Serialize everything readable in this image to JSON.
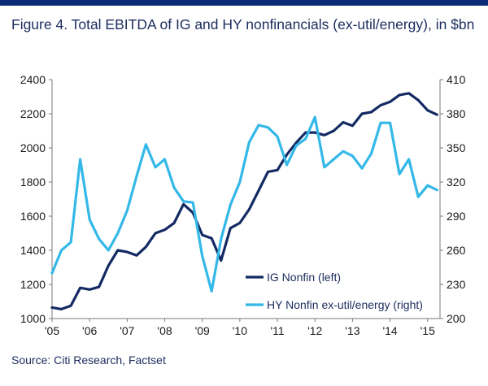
{
  "title": "Figure 4. Total EBITDA of IG and HY nonfinancials (ex-util/energy), in $bn",
  "source": "Source: Citi Research, Factset",
  "colors": {
    "ig": "#132a63",
    "hy": "#33b8e8",
    "topbar": "#0a2a78"
  },
  "chart_data": {
    "type": "line",
    "title": "Figure 4. Total EBITDA of IG and HY nonfinancials (ex-util/energy), in $bn",
    "xlabel": "",
    "ylabel": "",
    "x_tick_labels": [
      "'05",
      "'06",
      "'07",
      "'08",
      "'09",
      "'10",
      "'11",
      "'12",
      "'13",
      "'14",
      "'15"
    ],
    "y_left": {
      "lim": [
        1000,
        2400
      ],
      "ticks": [
        1000,
        1200,
        1400,
        1600,
        1800,
        2000,
        2200,
        2400
      ]
    },
    "y_right": {
      "lim": [
        200,
        410
      ],
      "ticks": [
        200,
        230,
        260,
        290,
        320,
        350,
        380,
        410
      ]
    },
    "grid": false,
    "legend_position": "bottom-right",
    "series": [
      {
        "name": "IG Nonfin (left)",
        "axis": "left",
        "color": "#132a63",
        "x": [
          2005.0,
          2005.25,
          2005.5,
          2005.75,
          2006.0,
          2006.25,
          2006.5,
          2006.75,
          2007.0,
          2007.25,
          2007.5,
          2007.75,
          2008.0,
          2008.25,
          2008.5,
          2008.75,
          2009.0,
          2009.25,
          2009.5,
          2009.75,
          2010.0,
          2010.25,
          2010.5,
          2010.75,
          2011.0,
          2011.25,
          2011.5,
          2011.75,
          2012.0,
          2012.25,
          2012.5,
          2012.75,
          2013.0,
          2013.25,
          2013.5,
          2013.75,
          2014.0,
          2014.25,
          2014.5,
          2014.75,
          2015.0,
          2015.25
        ],
        "values": [
          1065,
          1055,
          1075,
          1180,
          1170,
          1185,
          1310,
          1400,
          1390,
          1370,
          1420,
          1500,
          1520,
          1560,
          1670,
          1620,
          1490,
          1470,
          1340,
          1530,
          1560,
          1640,
          1750,
          1860,
          1870,
          1960,
          2030,
          2090,
          2090,
          2075,
          2100,
          2150,
          2130,
          2200,
          2210,
          2250,
          2270,
          2310,
          2320,
          2280,
          2220,
          2195
        ]
      },
      {
        "name": "HY Nonfin ex-util/energy (right)",
        "axis": "right",
        "color": "#33b8e8",
        "x": [
          2005.0,
          2005.25,
          2005.5,
          2005.75,
          2006.0,
          2006.25,
          2006.5,
          2006.75,
          2007.0,
          2007.25,
          2007.5,
          2007.75,
          2008.0,
          2008.25,
          2008.5,
          2008.75,
          2009.0,
          2009.25,
          2009.5,
          2009.75,
          2010.0,
          2010.25,
          2010.5,
          2010.75,
          2011.0,
          2011.25,
          2011.5,
          2011.75,
          2012.0,
          2012.25,
          2012.5,
          2012.75,
          2013.0,
          2013.25,
          2013.5,
          2013.75,
          2014.0,
          2014.25,
          2014.5,
          2014.75,
          2015.0,
          2015.25
        ],
        "values": [
          240,
          260,
          267,
          340,
          287,
          270,
          260,
          275,
          295,
          325,
          353,
          333,
          340,
          315,
          303,
          302,
          255,
          224,
          270,
          300,
          320,
          355,
          370,
          368,
          360,
          335,
          352,
          358,
          377,
          333,
          340,
          347,
          343,
          332,
          345,
          372,
          372,
          327,
          340,
          307,
          317,
          313
        ]
      }
    ]
  }
}
